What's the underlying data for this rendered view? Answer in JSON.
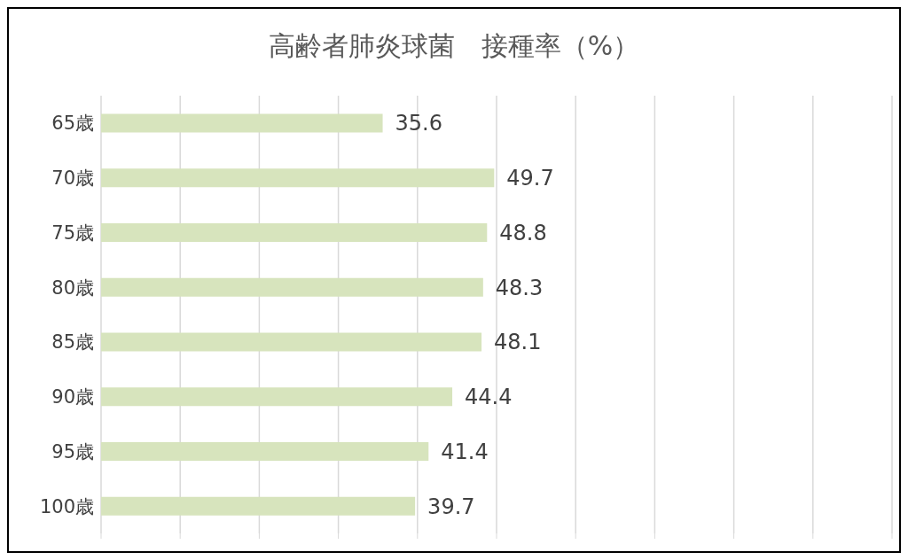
{
  "chart_data": {
    "type": "bar",
    "orientation": "horizontal",
    "title": "高齢者肺炎球菌　接種率（%）",
    "categories": [
      "65歳",
      "70歳",
      "75歳",
      "80歳",
      "85歳",
      "90歳",
      "95歳",
      "100歳"
    ],
    "values": [
      35.6,
      49.7,
      48.8,
      48.3,
      48.1,
      44.4,
      41.4,
      39.7
    ],
    "color": "#d7e4bd",
    "xlim": [
      0,
      100
    ],
    "xticks": [
      {
        "value": 0,
        "label": null
      },
      {
        "value": 10,
        "label": null
      },
      {
        "value": 20,
        "label": null
      },
      {
        "value": 30,
        "label": null
      },
      {
        "value": 40,
        "label": null
      },
      {
        "value": 50,
        "label": null
      },
      {
        "value": 60,
        "label": null
      },
      {
        "value": 70,
        "label": null
      },
      {
        "value": 80,
        "label": null
      },
      {
        "value": 90,
        "label": null
      },
      {
        "value": 100,
        "label": null
      }
    ],
    "grid": "x",
    "tick_labels": "y",
    "data_labels": true
  }
}
